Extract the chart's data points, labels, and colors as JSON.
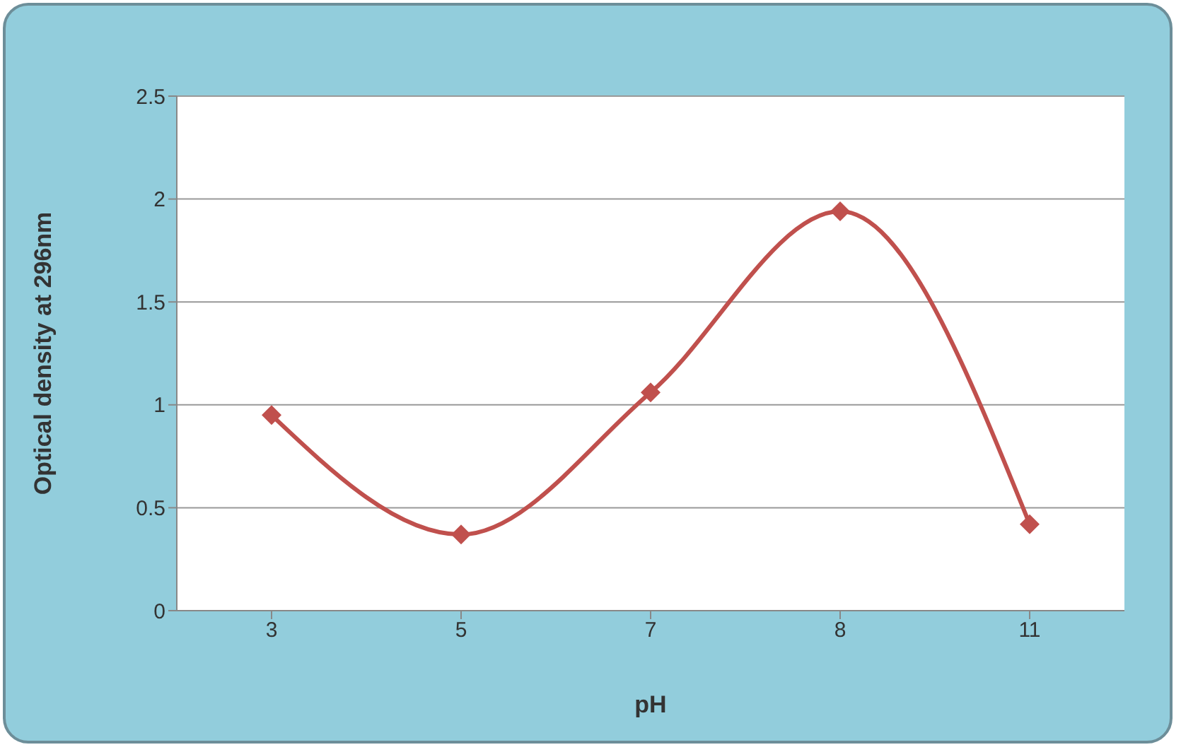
{
  "chart_data": {
    "type": "line",
    "xlabel": "pH",
    "ylabel": "Optical density at 296nm",
    "categories": [
      "3",
      "5",
      "7",
      "8",
      "11"
    ],
    "values": [
      0.95,
      0.37,
      1.06,
      1.94,
      0.42
    ],
    "color": "#c0504d",
    "ylim": [
      0,
      2.5
    ],
    "yticks": [
      0,
      0.5,
      1,
      1.5,
      2,
      2.5
    ],
    "grid": "y",
    "marker": "diamond"
  }
}
